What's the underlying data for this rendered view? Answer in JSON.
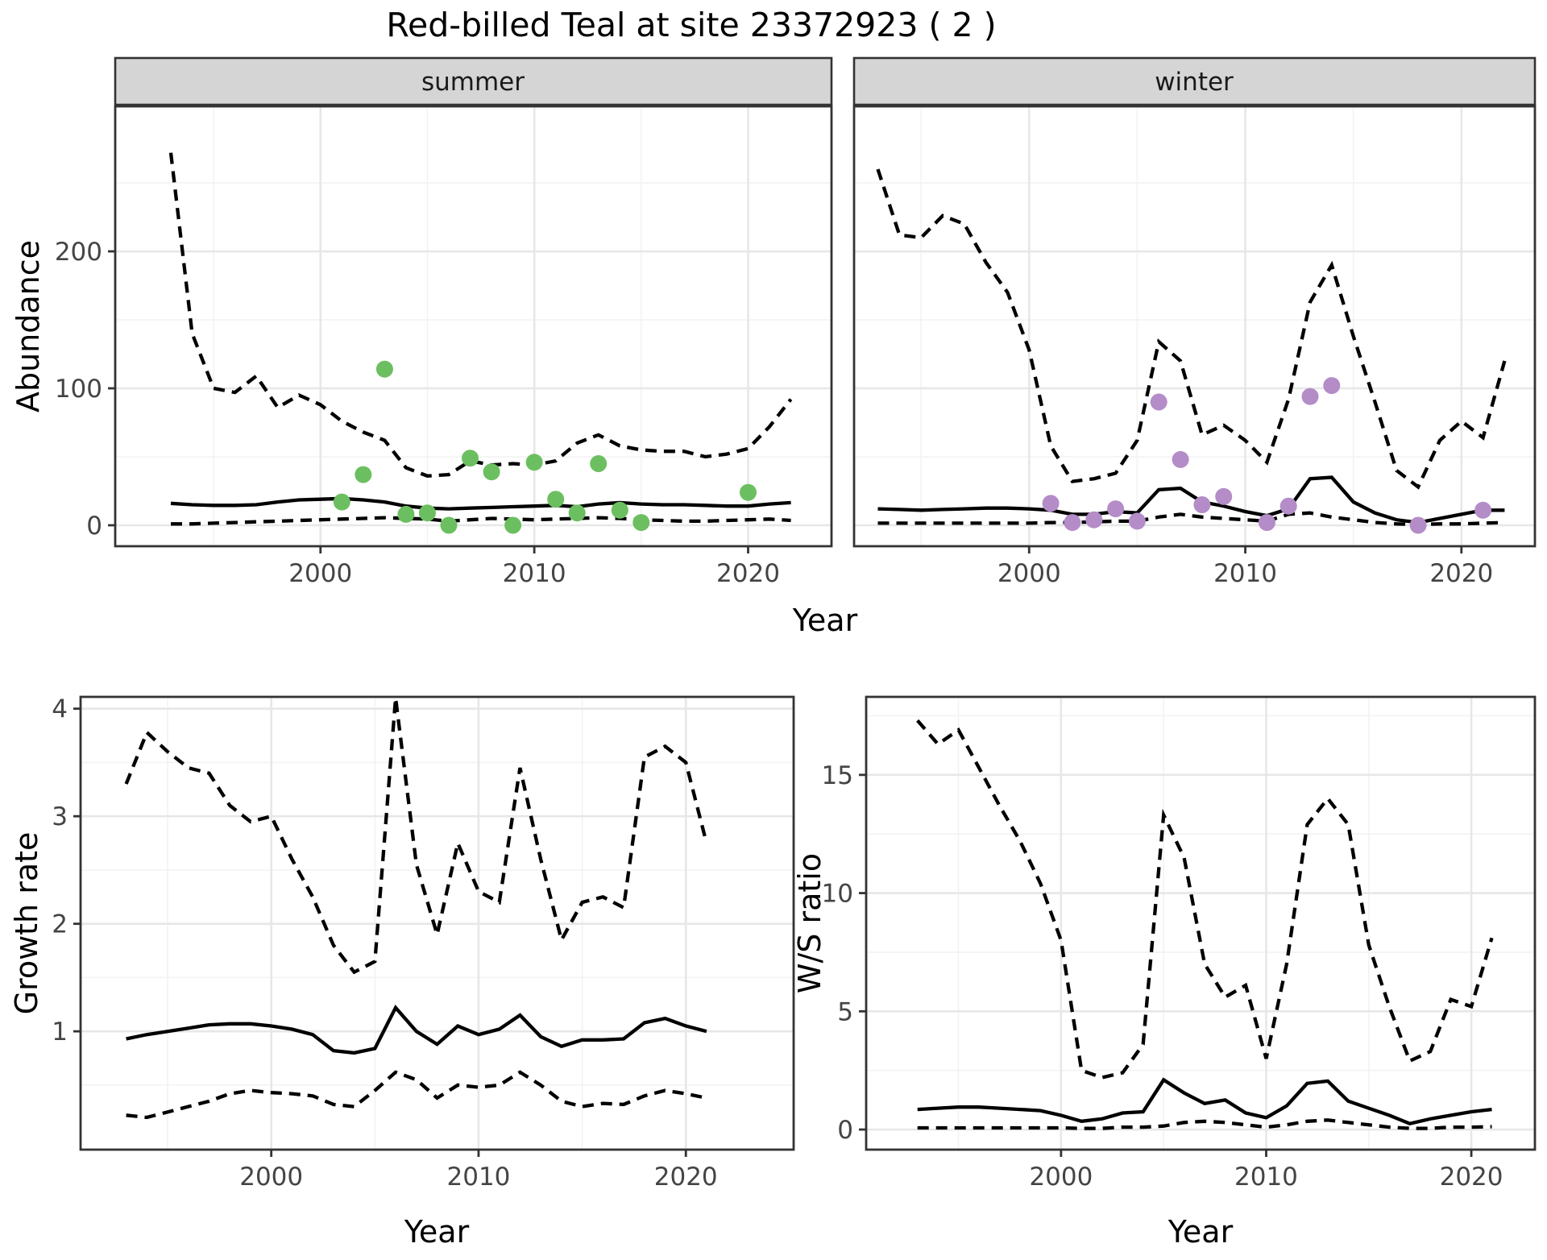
{
  "title": "Red-billed Teal at site 23372923 ( 2 )",
  "axis_titles": {
    "year": "Year",
    "abundance": "Abundance",
    "growth_rate": "Growth rate",
    "ws_ratio": "W/S ratio"
  },
  "colors": {
    "line": "#000000",
    "border": "#333333",
    "grid_major": "#e7e7e7",
    "grid_minor": "#f2f2f2",
    "strip_fill": "#d5d5d5",
    "summer_points": "#6cbf60",
    "winter_points": "#b48cc8",
    "tick_text": "#444444"
  },
  "chart_data": [
    {
      "id": "abundance-summer",
      "type": "line+scatter",
      "facet": "summer",
      "x_label": "Year",
      "y_label": "Abundance",
      "x_range": [
        1990.4,
        2023.9
      ],
      "y_range": [
        -15.3,
        305.9
      ],
      "x_ticks": [
        2000,
        2010,
        2020
      ],
      "x_tick_labels": [
        "2000",
        "2010",
        "2020"
      ],
      "x_minor": [
        1995,
        2005,
        2015
      ],
      "y_ticks": [
        0,
        100,
        200
      ],
      "y_tick_labels": [
        "0",
        "100",
        "200"
      ],
      "y_minor": [
        50,
        150,
        250
      ],
      "show_y_axis": true,
      "years": [
        1993,
        1994,
        1995,
        1996,
        1997,
        1998,
        1999,
        2000,
        2001,
        2002,
        2003,
        2004,
        2005,
        2006,
        2007,
        2008,
        2009,
        2010,
        2011,
        2012,
        2013,
        2014,
        2015,
        2016,
        2017,
        2018,
        2019,
        2020,
        2021,
        2022
      ],
      "series": [
        {
          "name": "upper-ci",
          "style": "dashed",
          "values": [
            272,
            140,
            100,
            97,
            109,
            86,
            95,
            88,
            76,
            68,
            62,
            42,
            36,
            37,
            47,
            44,
            45,
            44,
            47,
            60,
            66,
            58,
            55,
            54,
            54,
            50,
            52,
            56,
            72,
            92
          ]
        },
        {
          "name": "median",
          "style": "solid",
          "values": [
            16,
            15,
            14.5,
            14.5,
            15,
            17,
            18.5,
            19,
            19.5,
            18.5,
            17,
            14,
            12.5,
            12,
            12.5,
            13,
            13.5,
            14,
            14.5,
            13.5,
            15.5,
            16.5,
            15.5,
            15,
            15,
            14.5,
            14,
            14,
            15.5,
            16.5
          ]
        },
        {
          "name": "lower-ci",
          "style": "dashed",
          "values": [
            1,
            1,
            1.5,
            2,
            2.5,
            3,
            3.5,
            4,
            4.5,
            5,
            5.5,
            5,
            4.5,
            3,
            4,
            5,
            4.5,
            4,
            4.5,
            5,
            5.5,
            5,
            4,
            3.5,
            3,
            3,
            3.5,
            4,
            4.5,
            3.5
          ]
        }
      ],
      "points": {
        "name": "observed-counts-summer",
        "color": "#6cbf60",
        "x": [
          2001,
          2002,
          2003,
          2004,
          2005,
          2006,
          2007,
          2008,
          2009,
          2010,
          2011,
          2012,
          2013,
          2014,
          2015,
          2020
        ],
        "y": [
          17,
          37,
          114,
          8,
          9,
          0,
          49,
          39,
          0,
          46,
          19,
          9,
          45,
          11,
          2,
          24
        ]
      }
    },
    {
      "id": "abundance-winter",
      "type": "line+scatter",
      "facet": "winter",
      "x_label": "Year",
      "y_label": "Abundance",
      "x_range": [
        1991.9,
        2023.4
      ],
      "y_range": [
        -15.3,
        305.9
      ],
      "x_ticks": [
        2000,
        2010,
        2020
      ],
      "x_tick_labels": [
        "2000",
        "2010",
        "2020"
      ],
      "x_minor": [
        1995,
        2005,
        2015
      ],
      "y_ticks": [
        0,
        100,
        200
      ],
      "y_tick_labels": [
        "0",
        "100",
        "200"
      ],
      "y_minor": [
        50,
        150,
        250
      ],
      "show_y_axis": false,
      "years": [
        1993,
        1994,
        1995,
        1996,
        1997,
        1998,
        1999,
        2000,
        2001,
        2002,
        2003,
        2004,
        2005,
        2006,
        2007,
        2008,
        2009,
        2010,
        2011,
        2012,
        2013,
        2014,
        2015,
        2016,
        2017,
        2018,
        2019,
        2020,
        2021,
        2022
      ],
      "series": [
        {
          "name": "upper-ci",
          "style": "dashed",
          "values": [
            260,
            212,
            210,
            226,
            220,
            192,
            170,
            128,
            58,
            32,
            34,
            38,
            62,
            134,
            120,
            66,
            73,
            62,
            46,
            92,
            163,
            190,
            138,
            90,
            40,
            28,
            62,
            76,
            64,
            120
          ]
        },
        {
          "name": "median",
          "style": "solid",
          "values": [
            12,
            11.5,
            11,
            11.5,
            12,
            12.5,
            12.5,
            12,
            11,
            8,
            8,
            10,
            9,
            26,
            27,
            17,
            14,
            10,
            7,
            12,
            34,
            35,
            17,
            9,
            4,
            2,
            5,
            8,
            11,
            11
          ]
        },
        {
          "name": "lower-ci",
          "style": "dashed",
          "values": [
            1.5,
            1.5,
            1.5,
            1.5,
            1.5,
            1.5,
            1.5,
            1.5,
            2,
            2,
            2.5,
            3,
            3,
            6,
            8,
            6,
            5,
            4,
            3,
            8,
            9,
            6,
            4,
            2,
            1,
            0.5,
            1,
            1,
            1.5,
            2
          ]
        }
      ],
      "points": {
        "name": "observed-counts-winter",
        "color": "#b48cc8",
        "x": [
          2001,
          2002,
          2003,
          2004,
          2005,
          2006,
          2007,
          2008,
          2009,
          2011,
          2012,
          2013,
          2014,
          2018,
          2021
        ],
        "y": [
          16,
          2,
          4,
          12,
          3,
          90,
          48,
          15,
          21,
          2,
          14,
          94,
          102,
          0,
          11
        ]
      }
    },
    {
      "id": "growth-rate",
      "type": "line",
      "facet": "",
      "x_label": "Year",
      "y_label": "Growth rate",
      "x_range": [
        1990.8,
        2025.2
      ],
      "y_range": [
        -0.1,
        4.11
      ],
      "x_ticks": [
        2000,
        2010,
        2020
      ],
      "x_tick_labels": [
        "2000",
        "2010",
        "2020"
      ],
      "x_minor": [
        1995,
        2005,
        2015
      ],
      "y_ticks": [
        1,
        2,
        3,
        4
      ],
      "y_tick_labels": [
        "1",
        "2",
        "3",
        "4"
      ],
      "y_minor": [
        0.5,
        1.5,
        2.5,
        3.5
      ],
      "show_y_axis": true,
      "years": [
        1993,
        1994,
        1995,
        1996,
        1997,
        1998,
        1999,
        2000,
        2001,
        2002,
        2003,
        2004,
        2005,
        2006,
        2007,
        2008,
        2009,
        2010,
        2011,
        2012,
        2013,
        2014,
        2015,
        2016,
        2017,
        2018,
        2019,
        2020,
        2021
      ],
      "series": [
        {
          "name": "upper-ci",
          "style": "dashed",
          "values": [
            3.3,
            3.78,
            3.6,
            3.45,
            3.4,
            3.1,
            2.95,
            3.0,
            2.6,
            2.25,
            1.8,
            1.55,
            1.65,
            4.1,
            2.55,
            1.9,
            2.75,
            2.3,
            2.2,
            3.45,
            2.6,
            1.85,
            2.2,
            2.25,
            2.15,
            3.55,
            3.65,
            3.5,
            2.75
          ]
        },
        {
          "name": "median",
          "style": "solid",
          "values": [
            0.93,
            0.97,
            1.0,
            1.03,
            1.06,
            1.07,
            1.07,
            1.05,
            1.02,
            0.97,
            0.82,
            0.8,
            0.84,
            1.22,
            1.0,
            0.88,
            1.05,
            0.97,
            1.02,
            1.15,
            0.95,
            0.86,
            0.92,
            0.92,
            0.93,
            1.08,
            1.12,
            1.05,
            1.0
          ]
        },
        {
          "name": "lower-ci",
          "style": "dashed",
          "values": [
            0.22,
            0.2,
            0.25,
            0.3,
            0.35,
            0.42,
            0.45,
            0.43,
            0.42,
            0.4,
            0.32,
            0.3,
            0.45,
            0.62,
            0.55,
            0.38,
            0.5,
            0.48,
            0.5,
            0.62,
            0.5,
            0.35,
            0.3,
            0.33,
            0.32,
            0.4,
            0.45,
            0.42,
            0.38
          ]
        }
      ],
      "points": null
    },
    {
      "id": "ws-ratio",
      "type": "line",
      "facet": "",
      "x_label": "Year",
      "y_label": "W/S ratio",
      "x_range": [
        1990.5,
        2023.1
      ],
      "y_range": [
        -0.85,
        18.3
      ],
      "x_ticks": [
        2000,
        2010,
        2020
      ],
      "x_tick_labels": [
        "2000",
        "2010",
        "2020"
      ],
      "x_minor": [
        1995,
        2005,
        2015
      ],
      "y_ticks": [
        0,
        5,
        10,
        15
      ],
      "y_tick_labels": [
        "0",
        "5",
        "10",
        "15"
      ],
      "y_minor": [
        2.5,
        7.5,
        12.5,
        17.5
      ],
      "show_y_axis": true,
      "years": [
        1993,
        1994,
        1995,
        1996,
        1997,
        1998,
        1999,
        2000,
        2001,
        2002,
        2003,
        2004,
        2005,
        2006,
        2007,
        2008,
        2009,
        2010,
        2011,
        2012,
        2013,
        2014,
        2015,
        2016,
        2017,
        2018,
        2019,
        2020,
        2021
      ],
      "series": [
        {
          "name": "upper-ci",
          "style": "dashed",
          "values": [
            17.3,
            16.3,
            16.9,
            15.3,
            13.7,
            12.2,
            10.4,
            8.0,
            2.5,
            2.2,
            2.4,
            3.6,
            13.3,
            11.5,
            7.0,
            5.6,
            6.1,
            3.0,
            7.0,
            12.9,
            14.0,
            12.9,
            7.8,
            5.2,
            2.9,
            3.3,
            5.5,
            5.2,
            8.1
          ]
        },
        {
          "name": "median",
          "style": "solid",
          "values": [
            0.85,
            0.9,
            0.95,
            0.95,
            0.9,
            0.85,
            0.8,
            0.6,
            0.35,
            0.45,
            0.7,
            0.75,
            2.1,
            1.55,
            1.1,
            1.25,
            0.7,
            0.5,
            1.0,
            1.95,
            2.05,
            1.2,
            0.9,
            0.6,
            0.25,
            0.45,
            0.6,
            0.75,
            0.85
          ]
        },
        {
          "name": "lower-ci",
          "style": "dashed",
          "values": [
            0.07,
            0.07,
            0.07,
            0.07,
            0.07,
            0.07,
            0.07,
            0.07,
            0.05,
            0.05,
            0.1,
            0.1,
            0.15,
            0.3,
            0.35,
            0.3,
            0.2,
            0.1,
            0.2,
            0.35,
            0.4,
            0.3,
            0.2,
            0.1,
            0.05,
            0.05,
            0.1,
            0.1,
            0.12
          ]
        }
      ],
      "points": null
    }
  ]
}
